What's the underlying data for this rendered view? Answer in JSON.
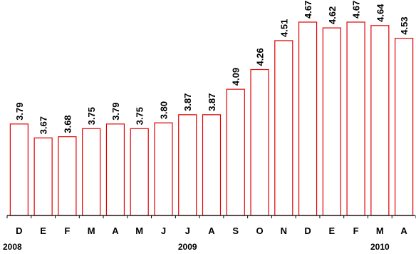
{
  "chart_data": {
    "type": "bar",
    "categories": [
      "D",
      "E",
      "F",
      "M",
      "A",
      "M",
      "J",
      "J",
      "A",
      "S",
      "O",
      "N",
      "D",
      "E",
      "F",
      "M",
      "A"
    ],
    "values": [
      3.79,
      3.67,
      3.68,
      3.75,
      3.79,
      3.75,
      3.8,
      3.87,
      3.87,
      4.09,
      4.26,
      4.51,
      4.67,
      4.62,
      4.67,
      4.64,
      4.53
    ],
    "value_labels": [
      "3.79",
      "3.67",
      "3.68",
      "3.75",
      "3.79",
      "3.75",
      "3.80",
      "3.87",
      "3.87",
      "4.09",
      "4.26",
      "4.51",
      "4.67",
      "4.62",
      "4.67",
      "4.64",
      "4.53"
    ],
    "year_labels": [
      {
        "text": "2008",
        "category_index": 0
      },
      {
        "text": "2009",
        "category_index": 7
      },
      {
        "text": "2010",
        "category_index": 15
      }
    ],
    "title": "",
    "xlabel": "",
    "ylabel": "",
    "ylim": [
      3.0,
      4.75
    ],
    "grid": false,
    "bar_fill": "#ffffff",
    "bar_stroke": "#e00000"
  }
}
